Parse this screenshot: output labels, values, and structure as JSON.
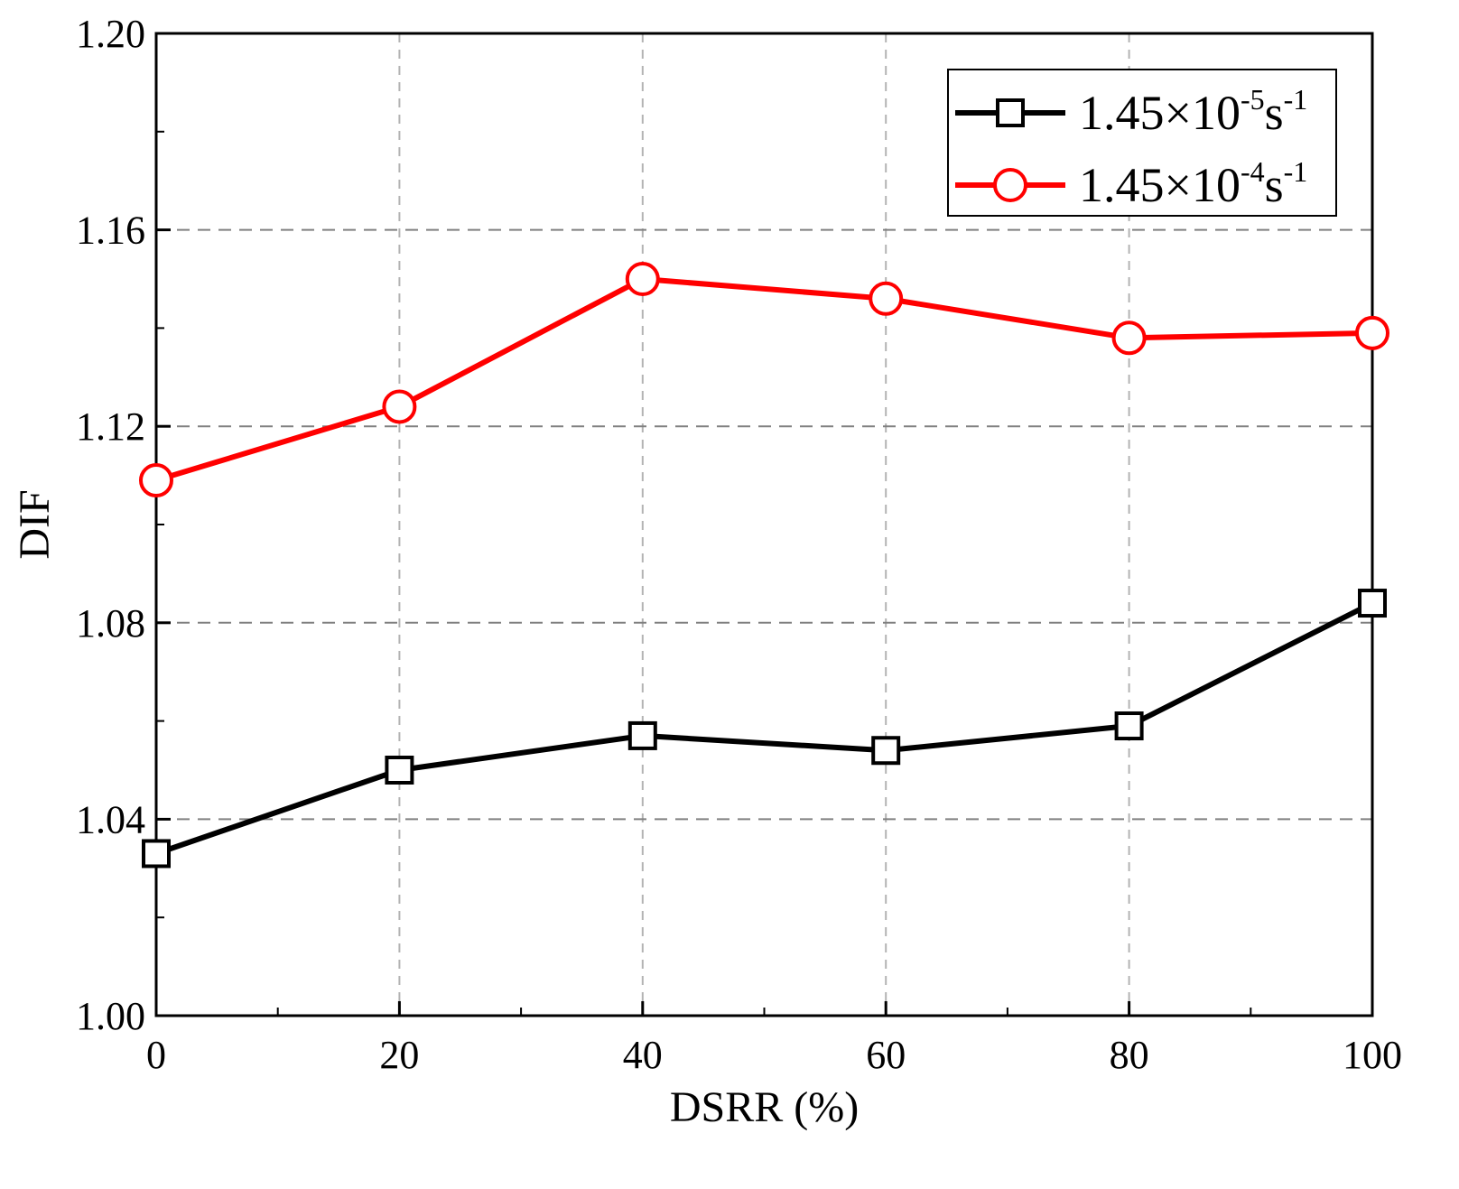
{
  "chart_data": {
    "type": "line",
    "title": "",
    "xlabel": "DSRR (%)",
    "ylabel": "DIF",
    "xlim": [
      0,
      100
    ],
    "ylim": [
      1.0,
      1.2
    ],
    "xticks": [
      0,
      20,
      40,
      60,
      80,
      100
    ],
    "yticks": [
      1.0,
      1.04,
      1.08,
      1.12,
      1.16,
      1.2
    ],
    "xtick_labels": [
      "0",
      "20",
      "40",
      "60",
      "80",
      "100"
    ],
    "ytick_labels": [
      "1.00",
      "1.04",
      "1.08",
      "1.12",
      "1.16",
      "1.20"
    ],
    "grid": true,
    "legend_position": "top-right",
    "series": [
      {
        "label_base": "1.45×10",
        "label_exp": "-5",
        "label_unit": "s",
        "label_unit_exp": "-1",
        "color": "#000000",
        "marker": "square",
        "x": [
          0,
          20,
          40,
          60,
          80,
          100
        ],
        "y": [
          1.033,
          1.05,
          1.057,
          1.054,
          1.059,
          1.084
        ]
      },
      {
        "label_base": "1.45×10",
        "label_exp": "-4",
        "label_unit": "s",
        "label_unit_exp": "-1",
        "color": "#ff0000",
        "marker": "circle",
        "x": [
          0,
          20,
          40,
          60,
          80,
          100
        ],
        "y": [
          1.109,
          1.124,
          1.15,
          1.146,
          1.138,
          1.139
        ]
      }
    ]
  }
}
